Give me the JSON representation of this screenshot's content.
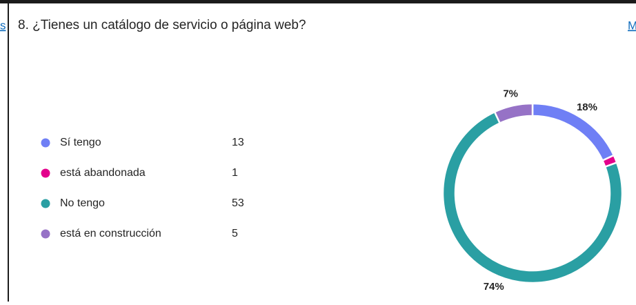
{
  "left_link_fragment": "s",
  "right_link_fragment": "M",
  "chart_data": {
    "type": "donut",
    "title": "8. ¿Tienes un catálogo de servicio o  página web?",
    "categories": [
      "Sí tengo",
      "está abandonada",
      "No tengo",
      "está en construcción"
    ],
    "values": [
      13,
      1,
      53,
      5
    ],
    "colors": [
      "#6f7ff5",
      "#e3008c",
      "#2a9fa3",
      "#9672c6"
    ],
    "percent_labels": [
      "18%",
      null,
      "74%",
      "7%"
    ]
  }
}
